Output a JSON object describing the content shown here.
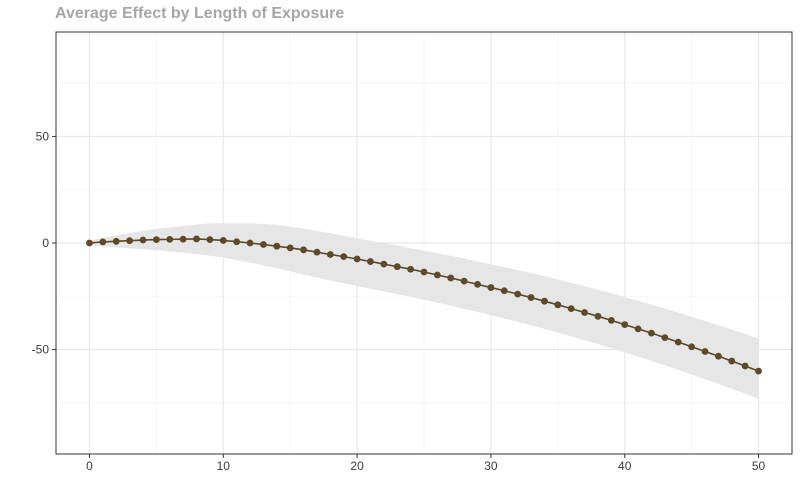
{
  "chart_data": {
    "type": "line",
    "title": "Average Effect by Length of Exposure",
    "xlabel": "",
    "ylabel": "",
    "xlim": [
      -2.5,
      52.5
    ],
    "ylim": [
      -99,
      99
    ],
    "x_ticks": [
      0,
      10,
      20,
      30,
      40,
      50
    ],
    "x_tick_labels": [
      "0",
      "10",
      "20",
      "30",
      "40",
      "50"
    ],
    "y_ticks": [
      -50,
      0,
      50
    ],
    "y_tick_labels": [
      "-50",
      "0",
      "50"
    ],
    "grid": true,
    "legend": "none",
    "series": [
      {
        "x": [
          0,
          1,
          2,
          3,
          4,
          5,
          6,
          7,
          8,
          9,
          10,
          11,
          12,
          13,
          14,
          15,
          16,
          17,
          18,
          19,
          20,
          21,
          22,
          23,
          24,
          25,
          26,
          27,
          28,
          29,
          30,
          31,
          32,
          33,
          34,
          35,
          36,
          37,
          38,
          39,
          40,
          41,
          42,
          43,
          44,
          45,
          46,
          47,
          48,
          49,
          50
        ],
        "values": [
          0,
          0.5,
          0.8,
          1.1,
          1.4,
          1.6,
          1.7,
          1.8,
          1.9,
          1.6,
          1.2,
          0.6,
          0,
          -0.7,
          -1.5,
          -2.3,
          -3.2,
          -4.3,
          -5.4,
          -6.4,
          -7.5,
          -8.7,
          -9.9,
          -11.1,
          -12.3,
          -13.6,
          -15,
          -16.4,
          -17.9,
          -19.4,
          -20.9,
          -22.4,
          -24,
          -25.6,
          -27.3,
          -29,
          -30.8,
          -32.6,
          -34.4,
          -36.3,
          -38.3,
          -40.3,
          -42.3,
          -44.4,
          -46.5,
          -48.7,
          -50.9,
          -53.1,
          -55.4,
          -57.7,
          -60.1
        ],
        "ci_lower": [
          -1,
          -1.5,
          -2,
          -2.5,
          -3,
          -3.4,
          -4,
          -4.6,
          -5.2,
          -6,
          -6.8,
          -8,
          -9.2,
          -10.5,
          -11.8,
          -13.3,
          -14.8,
          -16.2,
          -17.6,
          -18.9,
          -20.2,
          -21.5,
          -22.7,
          -24,
          -25.3,
          -26.6,
          -28,
          -29.4,
          -30.9,
          -32.4,
          -33.9,
          -35.4,
          -37,
          -38.6,
          -40.3,
          -42,
          -43.8,
          -45.6,
          -47.4,
          -49.3,
          -51.3,
          -53.3,
          -55.3,
          -57.4,
          -59.5,
          -61.7,
          -63.9,
          -66.1,
          -68.4,
          -70.7,
          -73.1
        ],
        "ci_upper": [
          1,
          2.5,
          3.6,
          4.7,
          5.8,
          6.6,
          7.4,
          8,
          8.7,
          9.2,
          9.2,
          9.2,
          9.2,
          8.9,
          8.5,
          7.7,
          6.8,
          5.6,
          4.6,
          3.4,
          2.2,
          1,
          0,
          -1.2,
          -2.5,
          -3.5,
          -4.7,
          -6,
          -7.3,
          -8.7,
          -10,
          -11.3,
          -12.7,
          -14.1,
          -15.6,
          -17.1,
          -18.7,
          -20.3,
          -21.9,
          -23.6,
          -25.4,
          -27.1,
          -28.9,
          -30.8,
          -32.6,
          -34.6,
          -36.6,
          -38.6,
          -40.6,
          -42.7,
          -44.8
        ]
      }
    ],
    "colors": {
      "line": "#5c4a2b",
      "ribbon": "#e6e6e6",
      "grid_major": "#e8e8e8",
      "grid_minor": "#f3f3f3",
      "panel_border": "#333333",
      "tick_text": "#3c3c3c",
      "title": "#a6a6a6"
    }
  }
}
